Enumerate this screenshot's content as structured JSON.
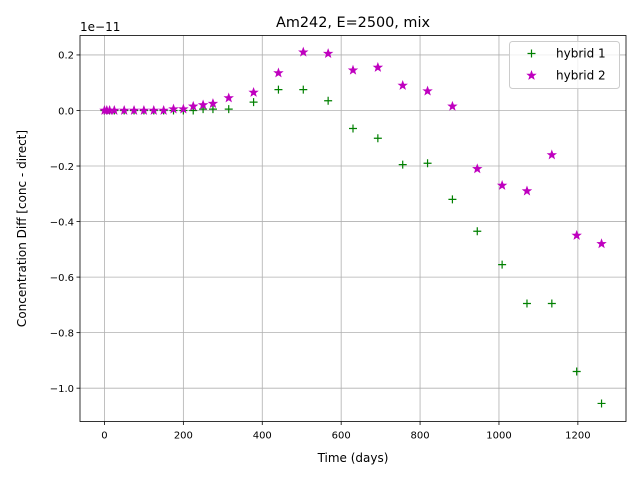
{
  "chart_data": {
    "type": "scatter",
    "title": "Am242, E=2500, mix",
    "xlabel": "Time (days)",
    "ylabel": "Concentration Diff [conc - direct]",
    "offset_text": "1e−11",
    "xlim": [
      -62,
      1322
    ],
    "ylim": [
      -1.12,
      0.27
    ],
    "x_ticks": [
      0,
      200,
      400,
      600,
      800,
      1000,
      1200
    ],
    "x_tick_labels": [
      "0",
      "200",
      "400",
      "600",
      "800",
      "1000",
      "1200"
    ],
    "y_ticks": [
      0.2,
      0.0,
      -0.2,
      -0.4,
      -0.6,
      -0.8,
      -1.0
    ],
    "y_tick_labels": [
      "0.2",
      "0.0",
      "−0.2",
      "−0.4",
      "−0.6",
      "−0.8",
      "−1.0"
    ],
    "grid": true,
    "legend_position": "top-right",
    "series": [
      {
        "name": "hybrid 1",
        "marker": "plus",
        "color": "#008000",
        "x": [
          0,
          6,
          13,
          25,
          50,
          75,
          100,
          125,
          150,
          175,
          200,
          225,
          250,
          275,
          315,
          378,
          441,
          504,
          567,
          630,
          693,
          756,
          819,
          882,
          945,
          1008,
          1071,
          1134,
          1197,
          1260
        ],
        "y": [
          0.0,
          0.0,
          0.0,
          0.0,
          0.0,
          0.0,
          0.0,
          0.0,
          0.0,
          0.0,
          0.0,
          0.0,
          0.005,
          0.005,
          0.005,
          0.03,
          0.075,
          0.075,
          0.035,
          -0.065,
          -0.1,
          -0.195,
          -0.19,
          -0.32,
          -0.435,
          -0.555,
          -0.695,
          -0.695,
          -0.94,
          -1.055
        ]
      },
      {
        "name": "hybrid 2",
        "marker": "star",
        "color": "#bf00bf",
        "x": [
          0,
          6,
          13,
          25,
          50,
          75,
          100,
          125,
          150,
          175,
          200,
          225,
          250,
          275,
          315,
          378,
          441,
          504,
          567,
          630,
          693,
          756,
          819,
          882,
          945,
          1008,
          1071,
          1134,
          1197,
          1260
        ],
        "y": [
          0.0,
          0.0,
          0.0,
          0.0,
          0.0,
          0.0,
          0.0,
          0.0,
          0.0,
          0.005,
          0.005,
          0.015,
          0.02,
          0.025,
          0.045,
          0.065,
          0.135,
          0.21,
          0.205,
          0.145,
          0.155,
          0.09,
          0.07,
          0.015,
          -0.21,
          -0.27,
          -0.29,
          -0.16,
          -0.45,
          -0.48
        ]
      }
    ]
  }
}
